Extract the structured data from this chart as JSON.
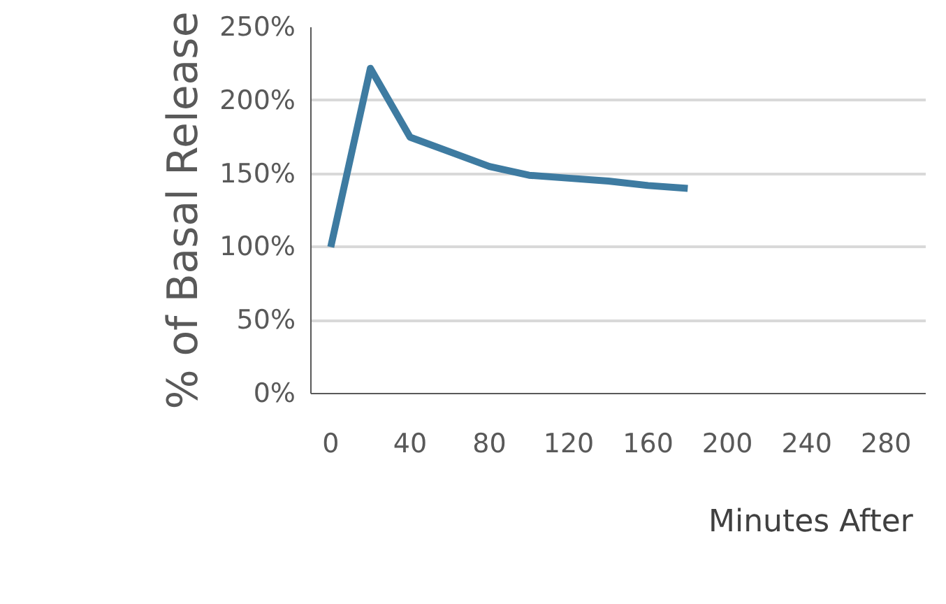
{
  "chart_data": {
    "type": "line",
    "ylabel": "% of Basal Release",
    "x": [
      0,
      20,
      40,
      60,
      80,
      100,
      120,
      140,
      160,
      180
    ],
    "series": [
      {
        "name": "Minutes After",
        "color": "#3e7ba1",
        "values": [
          100,
          222,
          175,
          165,
          155,
          149,
          147,
          145,
          142,
          140
        ]
      }
    ],
    "xlim": [
      -10,
      300
    ],
    "xticks": [
      0,
      40,
      80,
      120,
      160,
      200,
      240,
      280
    ],
    "ylim": [
      0,
      250
    ],
    "yticks": [
      {
        "value": 0,
        "label": "0%"
      },
      {
        "value": 50,
        "label": "50%"
      },
      {
        "value": 100,
        "label": "100%"
      },
      {
        "value": 150,
        "label": "150%"
      },
      {
        "value": 200,
        "label": "200%"
      },
      {
        "value": 250,
        "label": "250%"
      }
    ],
    "grid": "y",
    "legend": "bottom",
    "marker": "none",
    "line_style": "solid"
  }
}
